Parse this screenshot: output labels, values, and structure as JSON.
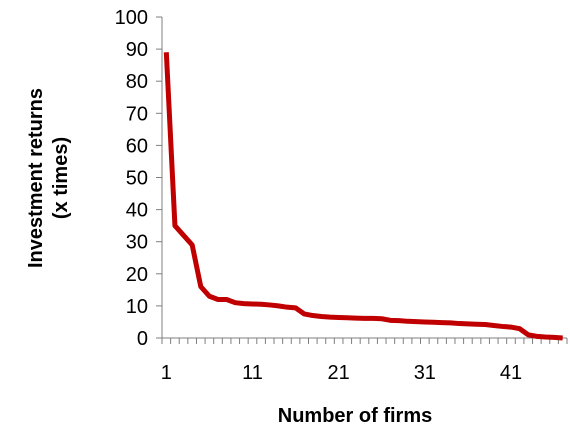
{
  "chart_data": {
    "type": "line",
    "title": "",
    "xlabel": "Number of firms",
    "ylabel_lines": [
      "Investment returns",
      "(x times)"
    ],
    "x": [
      1,
      2,
      3,
      4,
      5,
      6,
      7,
      8,
      9,
      10,
      11,
      12,
      13,
      14,
      15,
      16,
      17,
      18,
      19,
      20,
      21,
      22,
      23,
      24,
      25,
      26,
      27,
      28,
      29,
      30,
      31,
      32,
      33,
      34,
      35,
      36,
      37,
      38,
      39,
      40,
      41,
      42,
      43,
      44,
      45,
      46,
      47
    ],
    "series": [
      {
        "name": "",
        "color": "#c00000",
        "values": [
          89,
          35,
          32,
          29,
          16,
          13,
          12,
          12,
          11,
          10.7,
          10.6,
          10.5,
          10.3,
          10,
          9.6,
          9.4,
          7.5,
          7,
          6.7,
          6.5,
          6.4,
          6.3,
          6.2,
          6.1,
          6.1,
          6,
          5.5,
          5.4,
          5.2,
          5.1,
          5,
          4.9,
          4.8,
          4.7,
          4.5,
          4.4,
          4.3,
          4.2,
          3.9,
          3.6,
          3.4,
          2.9,
          1,
          0.5,
          0.3,
          0.2,
          0
        ]
      }
    ],
    "ylim": [
      0,
      100
    ],
    "yticks": [
      0,
      10,
      20,
      30,
      40,
      50,
      60,
      70,
      80,
      90,
      100
    ],
    "xticks": [
      1,
      11,
      21,
      31,
      41
    ],
    "grid": false,
    "legend": "none"
  }
}
